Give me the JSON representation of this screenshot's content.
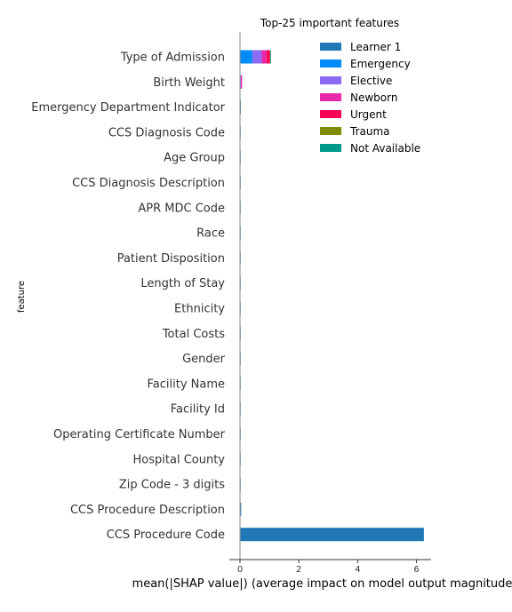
{
  "chart_data": {
    "type": "bar",
    "orientation": "horizontal",
    "stacked": true,
    "title": "Top-25 important features",
    "xlabel": "mean(|SHAP value|) (average impact on model output magnitude)",
    "ylabel": "feature",
    "xlim": [
      -0.3,
      6.5
    ],
    "xticks": [
      0,
      2,
      4,
      6
    ],
    "grid": false,
    "legend_position": "top-right",
    "categories": [
      "Type of Admission",
      "Birth Weight",
      "Emergency Department Indicator",
      "CCS Diagnosis Code",
      "Age Group",
      "CCS Diagnosis Description",
      "APR MDC Code",
      "Race",
      "Patient Disposition",
      "Length of Stay",
      "Ethnicity",
      "Total Costs",
      "Gender",
      "Facility Name",
      "Facility Id",
      "Operating Certificate Number",
      "Hospital County",
      "Zip Code - 3 digits",
      "CCS Procedure Description",
      "CCS Procedure Code"
    ],
    "series": [
      {
        "name": "Learner 1",
        "color": "#1f77b4",
        "values": [
          0.0,
          0.0,
          0.03,
          0.005,
          0.004,
          0.004,
          0.003,
          0.003,
          0.003,
          0.003,
          0.002,
          0.002,
          0.002,
          0.002,
          0.002,
          0.002,
          0.002,
          0.002,
          0.04,
          6.25
        ]
      },
      {
        "name": "Emergency",
        "color": "#008bfb",
        "values": [
          0.42,
          0.0,
          0.0,
          0.0,
          0.0,
          0.0,
          0.0,
          0.0,
          0.0,
          0.0,
          0.0,
          0.0,
          0.0,
          0.0,
          0.0,
          0.0,
          0.0,
          0.0,
          0.0,
          0.0
        ]
      },
      {
        "name": "Elective",
        "color": "#8c6bf3",
        "values": [
          0.32,
          0.03,
          0.0,
          0.0,
          0.0,
          0.0,
          0.0,
          0.0,
          0.0,
          0.0,
          0.0,
          0.0,
          0.0,
          0.0,
          0.0,
          0.0,
          0.0,
          0.0,
          0.0,
          0.0
        ]
      },
      {
        "name": "Newborn",
        "color": "#e728a8",
        "values": [
          0.16,
          0.04,
          0.0,
          0.0,
          0.0,
          0.0,
          0.0,
          0.0,
          0.0,
          0.0,
          0.0,
          0.0,
          0.0,
          0.0,
          0.0,
          0.0,
          0.0,
          0.0,
          0.0,
          0.0
        ]
      },
      {
        "name": "Urgent",
        "color": "#ff0052",
        "values": [
          0.12,
          0.0,
          0.0,
          0.0,
          0.0,
          0.0,
          0.0,
          0.0,
          0.0,
          0.0,
          0.0,
          0.0,
          0.0,
          0.0,
          0.0,
          0.0,
          0.0,
          0.0,
          0.0,
          0.0
        ]
      },
      {
        "name": "Trauma",
        "color": "#7f8c00",
        "values": [
          0.005,
          0.0,
          0.0,
          0.0,
          0.0,
          0.0,
          0.0,
          0.0,
          0.0,
          0.0,
          0.0,
          0.0,
          0.0,
          0.0,
          0.0,
          0.0,
          0.0,
          0.0,
          0.0,
          0.0
        ]
      },
      {
        "name": "Not Available",
        "color": "#00998a",
        "values": [
          0.003,
          0.0,
          0.0,
          0.0,
          0.0,
          0.0,
          0.0,
          0.0,
          0.0,
          0.0,
          0.0,
          0.0,
          0.0,
          0.0,
          0.0,
          0.0,
          0.0,
          0.0,
          0.0,
          0.0
        ]
      }
    ]
  }
}
